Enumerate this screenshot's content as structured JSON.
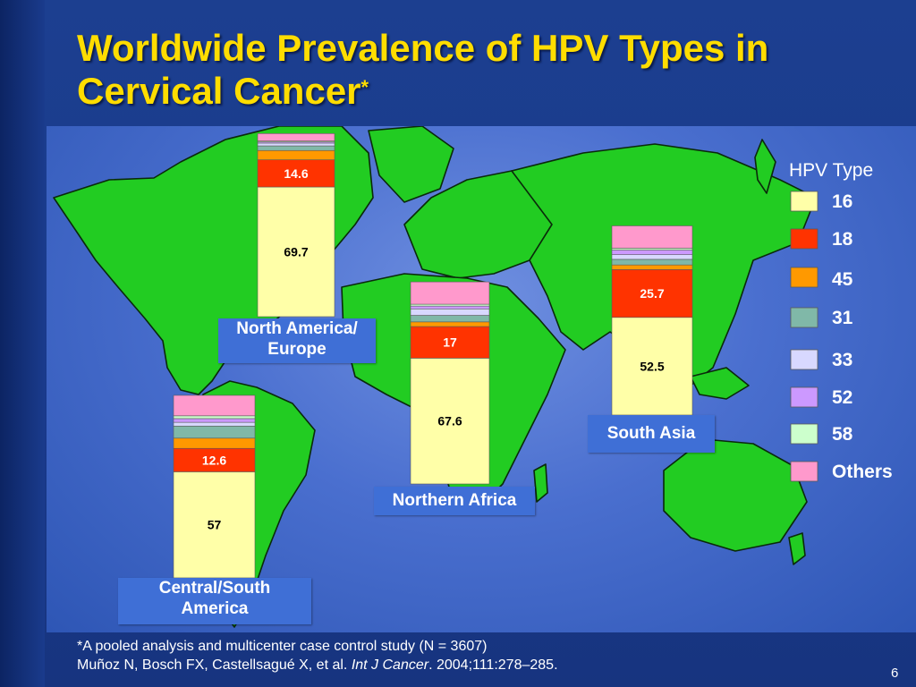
{
  "slide": {
    "title_text": "Worldwide Prevalence of HPV Types in Cervical Cancer",
    "title_footnote_mark": "*",
    "footnote_line1": "*A pooled analysis and multicenter case control study (N = 3607)",
    "footnote_authors": "Muñoz N, Bosch FX, Castellsagué X, et al.",
    "footnote_journal": "Int J Cancer",
    "footnote_rest": ". 2004;111:278–285.",
    "page_number": "6"
  },
  "colors": {
    "background": "#1c3f90",
    "title": "#ffdd00",
    "land": "#22cc22",
    "label_box": "#3f6fd6"
  },
  "chart_data": {
    "type": "bar",
    "stacked": true,
    "legend_title": "HPV Type",
    "legend_placement": "right",
    "series": [
      {
        "name": "16",
        "color": "#ffffa8"
      },
      {
        "name": "18",
        "color": "#ff3300"
      },
      {
        "name": "45",
        "color": "#ff9900"
      },
      {
        "name": "31",
        "color": "#80b8a8"
      },
      {
        "name": "33",
        "color": "#d8d8ff"
      },
      {
        "name": "52",
        "color": "#cc99ff"
      },
      {
        "name": "58",
        "color": "#ccffcc"
      },
      {
        "name": "Others",
        "color": "#ff99cc"
      }
    ],
    "regions": [
      {
        "label": "North America/ Europe",
        "label_lines": [
          "North America/",
          "Europe"
        ],
        "values": [
          69.7,
          14.6,
          5.0,
          2.5,
          1.5,
          0.6,
          0.5,
          4.0
        ],
        "labeled": [
          0,
          1
        ]
      },
      {
        "label": "Central/South America",
        "label_lines": [
          "Central/South",
          "America"
        ],
        "values": [
          57,
          12.6,
          5.5,
          6.5,
          2.0,
          2.0,
          1.5,
          11.0
        ],
        "labeled": [
          0,
          1
        ]
      },
      {
        "label": "Northern Africa",
        "label_lines": [
          "Northern Africa"
        ],
        "values": [
          67.6,
          17,
          2.5,
          3.5,
          3.5,
          1.5,
          1.0,
          12.0
        ],
        "labeled": [
          0,
          1
        ]
      },
      {
        "label": "South Asia",
        "label_lines": [
          "South Asia"
        ],
        "values": [
          52.5,
          25.7,
          2.5,
          3.0,
          2.5,
          2.5,
          1.0,
          12.0
        ],
        "labeled": [
          0,
          1
        ]
      }
    ],
    "value_labels": {
      "north_america_europe": [
        "69.7",
        "14.6"
      ],
      "central_south_america": [
        "57",
        "12.6"
      ],
      "northern_africa": [
        "67.6",
        "17"
      ],
      "south_asia": [
        "52.5",
        "25.7"
      ]
    }
  }
}
